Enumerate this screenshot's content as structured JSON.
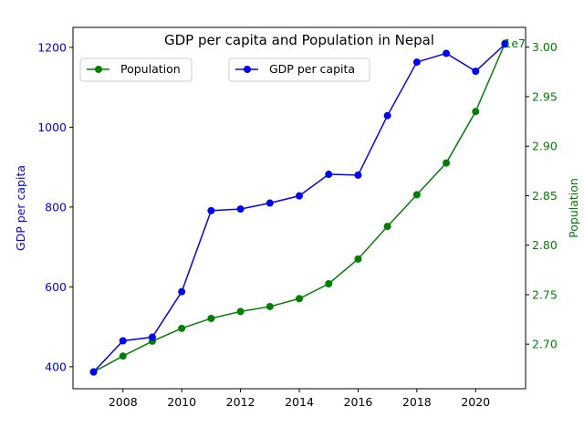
{
  "chart_data": {
    "type": "line",
    "title": "GDP per capita and Population in Nepal",
    "x": [
      2007,
      2008,
      2009,
      2010,
      2011,
      2012,
      2013,
      2014,
      2015,
      2016,
      2017,
      2018,
      2019,
      2020,
      2021
    ],
    "xlim": [
      2006.3,
      2021.7
    ],
    "x_ticks": [
      2008,
      2010,
      2012,
      2014,
      2016,
      2018,
      2020
    ],
    "grid": false,
    "series": [
      {
        "name": "GDP per capita",
        "axis": "left",
        "color": "#0000ff",
        "marker": "circle",
        "values": [
          387,
          465,
          474,
          588,
          791,
          795,
          810,
          828,
          882,
          880,
          1029,
          1163,
          1185,
          1140,
          1208
        ]
      },
      {
        "name": "Population",
        "axis": "right",
        "color": "#008000",
        "marker": "circle",
        "values": [
          26720000,
          26880000,
          27030000,
          27160000,
          27260000,
          27330000,
          27380000,
          27460000,
          27610000,
          27860000,
          28190000,
          28510000,
          28830000,
          29350000,
          30040000
        ]
      }
    ],
    "y_left": {
      "label": "GDP per capita",
      "color": "#0000ff",
      "ylim": [
        345,
        1250
      ],
      "ticks": [
        400,
        600,
        800,
        1000,
        1200
      ],
      "tick_labels": [
        "400",
        "600",
        "800",
        "1000",
        "1200"
      ]
    },
    "y_right": {
      "label": "Population",
      "color": "#008000",
      "ylim": [
        26550000,
        30200000
      ],
      "multiplier_label": "1e7",
      "ticks": [
        27000000,
        27500000,
        28000000,
        28500000,
        29000000,
        29500000,
        30000000
      ],
      "tick_labels": [
        "2.70",
        "2.75",
        "2.80",
        "2.85",
        "2.90",
        "2.95",
        "3.00"
      ]
    },
    "legends": [
      {
        "series": "Population",
        "placement": "upper-left"
      },
      {
        "series": "GDP per capita",
        "placement": "upper-center"
      }
    ]
  }
}
